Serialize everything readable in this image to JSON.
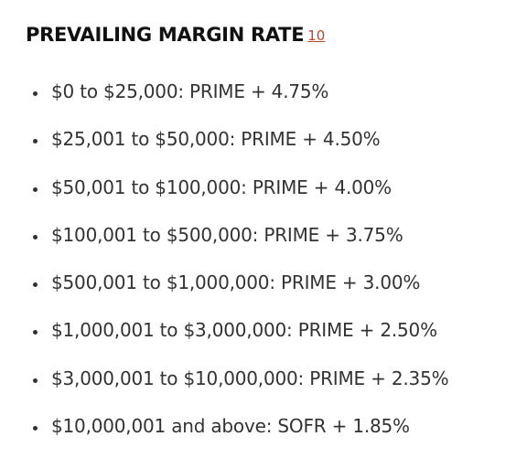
{
  "heading": {
    "title": "PREVAILING MARGIN RATE",
    "footnote": "10"
  },
  "rates": [
    "$0 to $25,000: PRIME + 4.75%",
    "$25,001 to $50,000: PRIME + 4.50%",
    "$50,001 to $100,000: PRIME + 4.00%",
    "$100,001 to $500,000: PRIME + 3.75%",
    "$500,001 to $1,000,000: PRIME + 3.00%",
    "$1,000,001 to $3,000,000: PRIME + 2.50%",
    "$3,000,001 to $10,000,000: PRIME + 2.35%",
    "$10,000,001 and above: SOFR + 1.85%"
  ],
  "colors": {
    "text": "#333333",
    "heading": "#111111",
    "footnote_link": "#b5482b"
  }
}
